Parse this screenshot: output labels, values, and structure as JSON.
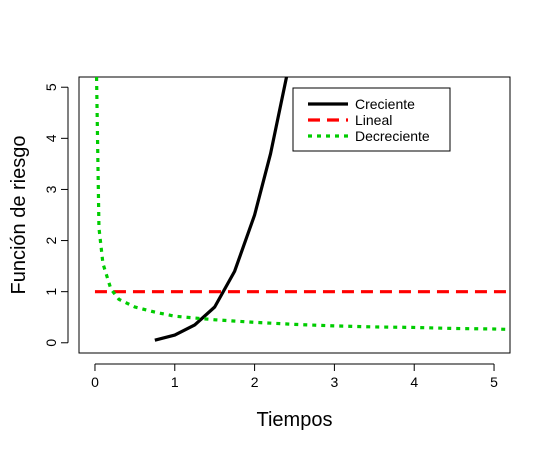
{
  "chart_data": {
    "type": "line",
    "title": "",
    "xlabel": "Tiempos",
    "ylabel": "Función de riesgo",
    "xlim": [
      -0.2,
      5.2
    ],
    "ylim": [
      -0.2,
      5.2
    ],
    "x_ticks": [
      0,
      1,
      2,
      3,
      4,
      5
    ],
    "y_ticks": [
      0,
      1,
      2,
      3,
      4,
      5
    ],
    "x_tick_labels": [
      "0",
      "1",
      "2",
      "3",
      "4",
      "5"
    ],
    "y_tick_labels": [
      "0",
      "1",
      "2",
      "3",
      "4",
      "5"
    ],
    "grid": false,
    "legend_position": "top-right",
    "series": [
      {
        "name": "Creciente",
        "color": "#000000",
        "line_style": "solid",
        "x": [
          0.75,
          1.0,
          1.25,
          1.5,
          1.75,
          2.0,
          2.2,
          2.4
        ],
        "y": [
          0.05,
          0.15,
          0.35,
          0.7,
          1.4,
          2.5,
          3.7,
          5.2
        ]
      },
      {
        "name": "Lineal",
        "color": "#ff0000",
        "line_style": "dashed",
        "x": [
          0,
          5.2
        ],
        "y": [
          1,
          1
        ]
      },
      {
        "name": "Decreciente",
        "color": "#00cc00",
        "line_style": "dotted",
        "x": [
          0.02,
          0.05,
          0.1,
          0.2,
          0.3,
          0.5,
          0.75,
          1.0,
          1.5,
          2.0,
          2.5,
          3.0,
          3.5,
          4.0,
          4.5,
          5.0,
          5.2
        ],
        "y": [
          5.2,
          2.25,
          1.55,
          1.05,
          0.85,
          0.7,
          0.6,
          0.52,
          0.45,
          0.4,
          0.36,
          0.33,
          0.31,
          0.3,
          0.28,
          0.27,
          0.26
        ]
      }
    ]
  }
}
